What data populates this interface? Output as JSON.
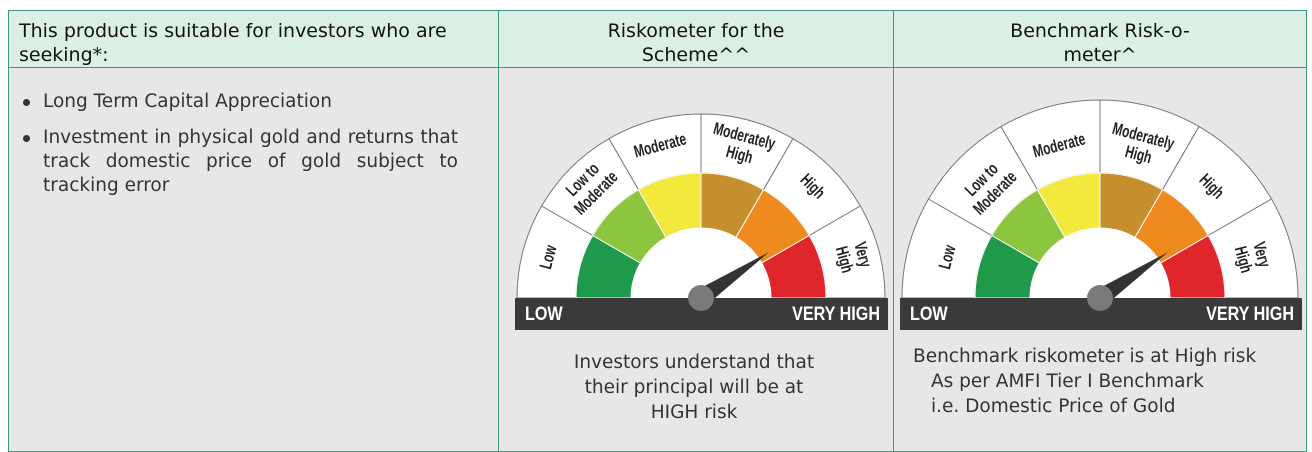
{
  "table": {
    "headers": [
      "This product is suitable for investors who are seeking*:",
      "Riskometer for the Scheme^^",
      "Benchmark Risk-o-meter^"
    ],
    "objectives": [
      "Long Term Capital Appreciation",
      "Investment in physical gold and returns that track domestic price of gold subject to tracking error"
    ],
    "scheme_riskometer": {
      "levels": [
        [
          "Low"
        ],
        [
          "Low to",
          "Moderate"
        ],
        [
          "Moderate"
        ],
        [
          "Moderately",
          "High"
        ],
        [
          "High"
        ],
        [
          "Very",
          "High"
        ]
      ],
      "scale_low": "LOW",
      "scale_high": "VERY HIGH",
      "caption": "Investors understand that their principal will be at HIGH risk"
    },
    "benchmark_riskometer": {
      "levels": [
        [
          "Low"
        ],
        [
          "Low to",
          "Moderate"
        ],
        [
          "Moderate"
        ],
        [
          "Moderately",
          "High"
        ],
        [
          "High"
        ],
        [
          "Very",
          "High"
        ]
      ],
      "scale_low": "LOW",
      "scale_high": "VERY HIGH",
      "caption": [
        "Benchmark riskometer is at High risk",
        "As per AMFI Tier I Benchmark i.e. Domestic Price of Gold"
      ]
    }
  }
}
